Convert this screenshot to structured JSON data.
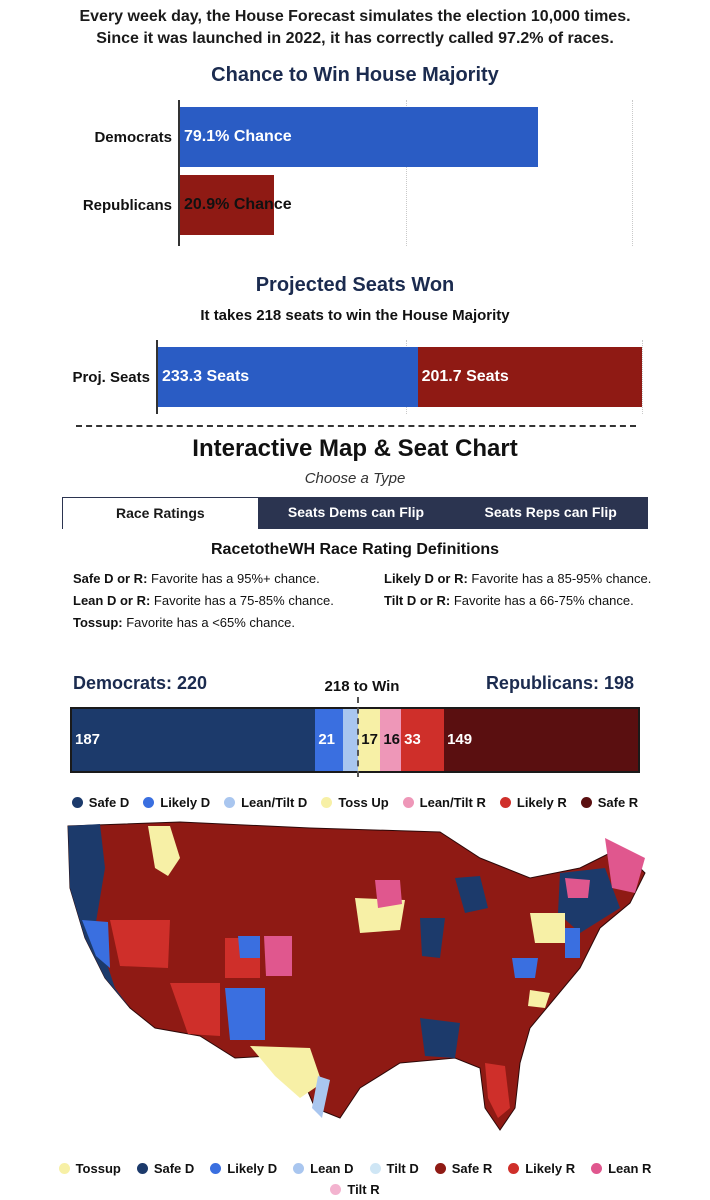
{
  "intro": {
    "line1": "Every week day, the House Forecast simulates the election 10,000 times.",
    "line2": "Since it was launched in 2022, it has correctly called 97.2% of races."
  },
  "majority_chart": {
    "title": "Chance to Win House Majority",
    "rows": [
      {
        "label": "Democrats",
        "value": 79.1,
        "text": "79.1% Chance",
        "color": "#2a5cc4"
      },
      {
        "label": "Republicans",
        "value": 20.9,
        "text": "20.9% Chance",
        "color": "#8f1a14"
      }
    ]
  },
  "seats_chart": {
    "title": "Projected Seats Won",
    "subtitle": "It takes 218 seats to win the House Majority",
    "row_label": "Proj. Seats",
    "dem": {
      "value": 233.3,
      "text": "233.3 Seats",
      "color": "#2a5cc4"
    },
    "rep": {
      "value": 201.7,
      "text": "201.7 Seats",
      "color": "#8f1a14"
    }
  },
  "interactive": {
    "title": "Interactive Map & Seat Chart",
    "choose": "Choose a Type",
    "tabs": [
      "Race Ratings",
      "Seats Dems can Flip",
      "Seats Reps can Flip"
    ]
  },
  "definitions": {
    "title": "RacetotheWH Race Rating Definitions",
    "items": [
      {
        "key": "Safe D or R:",
        "text": " Favorite has a 95%+ chance."
      },
      {
        "key": "Likely D or R:",
        "text": " Favorite has a 85-95% chance."
      },
      {
        "key": "Lean D or R:",
        "text": " Favorite has a 75-85% chance."
      },
      {
        "key": "Tilt D or R:",
        "text": " Favorite has a 66-75% chance."
      },
      {
        "key": "Tossup:",
        "text": " Favorite has a <65% chance."
      }
    ]
  },
  "seat_strip": {
    "dem_total": "Democrats: 220",
    "rep_total": "Republicans: 198",
    "win_label": "218 to Win",
    "segments": [
      {
        "name": "Safe D",
        "value": 187,
        "label": "187",
        "color": "#1c3a6b"
      },
      {
        "name": "Likely D",
        "value": 21,
        "label": "21",
        "color": "#3a6fe0"
      },
      {
        "name": "Lean/Tilt D",
        "value": 12,
        "label": "",
        "color": "#a9c6ef"
      },
      {
        "name": "Toss Up",
        "value": 17,
        "label": "17",
        "color": "#f7f0a6"
      },
      {
        "name": "Lean/Tilt R",
        "value": 16,
        "label": "16",
        "color": "#ee97b8"
      },
      {
        "name": "Likely R",
        "value": 33,
        "label": "33",
        "color": "#cf2f2a"
      },
      {
        "name": "Safe R",
        "value": 149,
        "label": "149",
        "color": "#5a0f10"
      }
    ]
  },
  "top_legend": [
    {
      "label": "Safe D",
      "color": "#1c3a6b"
    },
    {
      "label": "Likely D",
      "color": "#3a6fe0"
    },
    {
      "label": "Lean/Tilt D",
      "color": "#a9c6ef"
    },
    {
      "label": "Toss Up",
      "color": "#f7f0a6"
    },
    {
      "label": "Lean/Tilt R",
      "color": "#ee97b8"
    },
    {
      "label": "Likely R",
      "color": "#cf2f2a"
    },
    {
      "label": "Safe R",
      "color": "#5a0f10"
    }
  ],
  "bottom_legend": [
    {
      "label": "Tossup",
      "color": "#f7f0a6"
    },
    {
      "label": "Safe D",
      "color": "#1c3a6b"
    },
    {
      "label": "Likely D",
      "color": "#3a6fe0"
    },
    {
      "label": "Lean D",
      "color": "#a9c6ef"
    },
    {
      "label": "Tilt D",
      "color": "#cfe6f5"
    },
    {
      "label": "Safe R",
      "color": "#8f1a14"
    },
    {
      "label": "Likely R",
      "color": "#cf2f2a"
    },
    {
      "label": "Lean R",
      "color": "#e0578e"
    },
    {
      "label": "Tilt R",
      "color": "#f3b3cf"
    }
  ]
}
